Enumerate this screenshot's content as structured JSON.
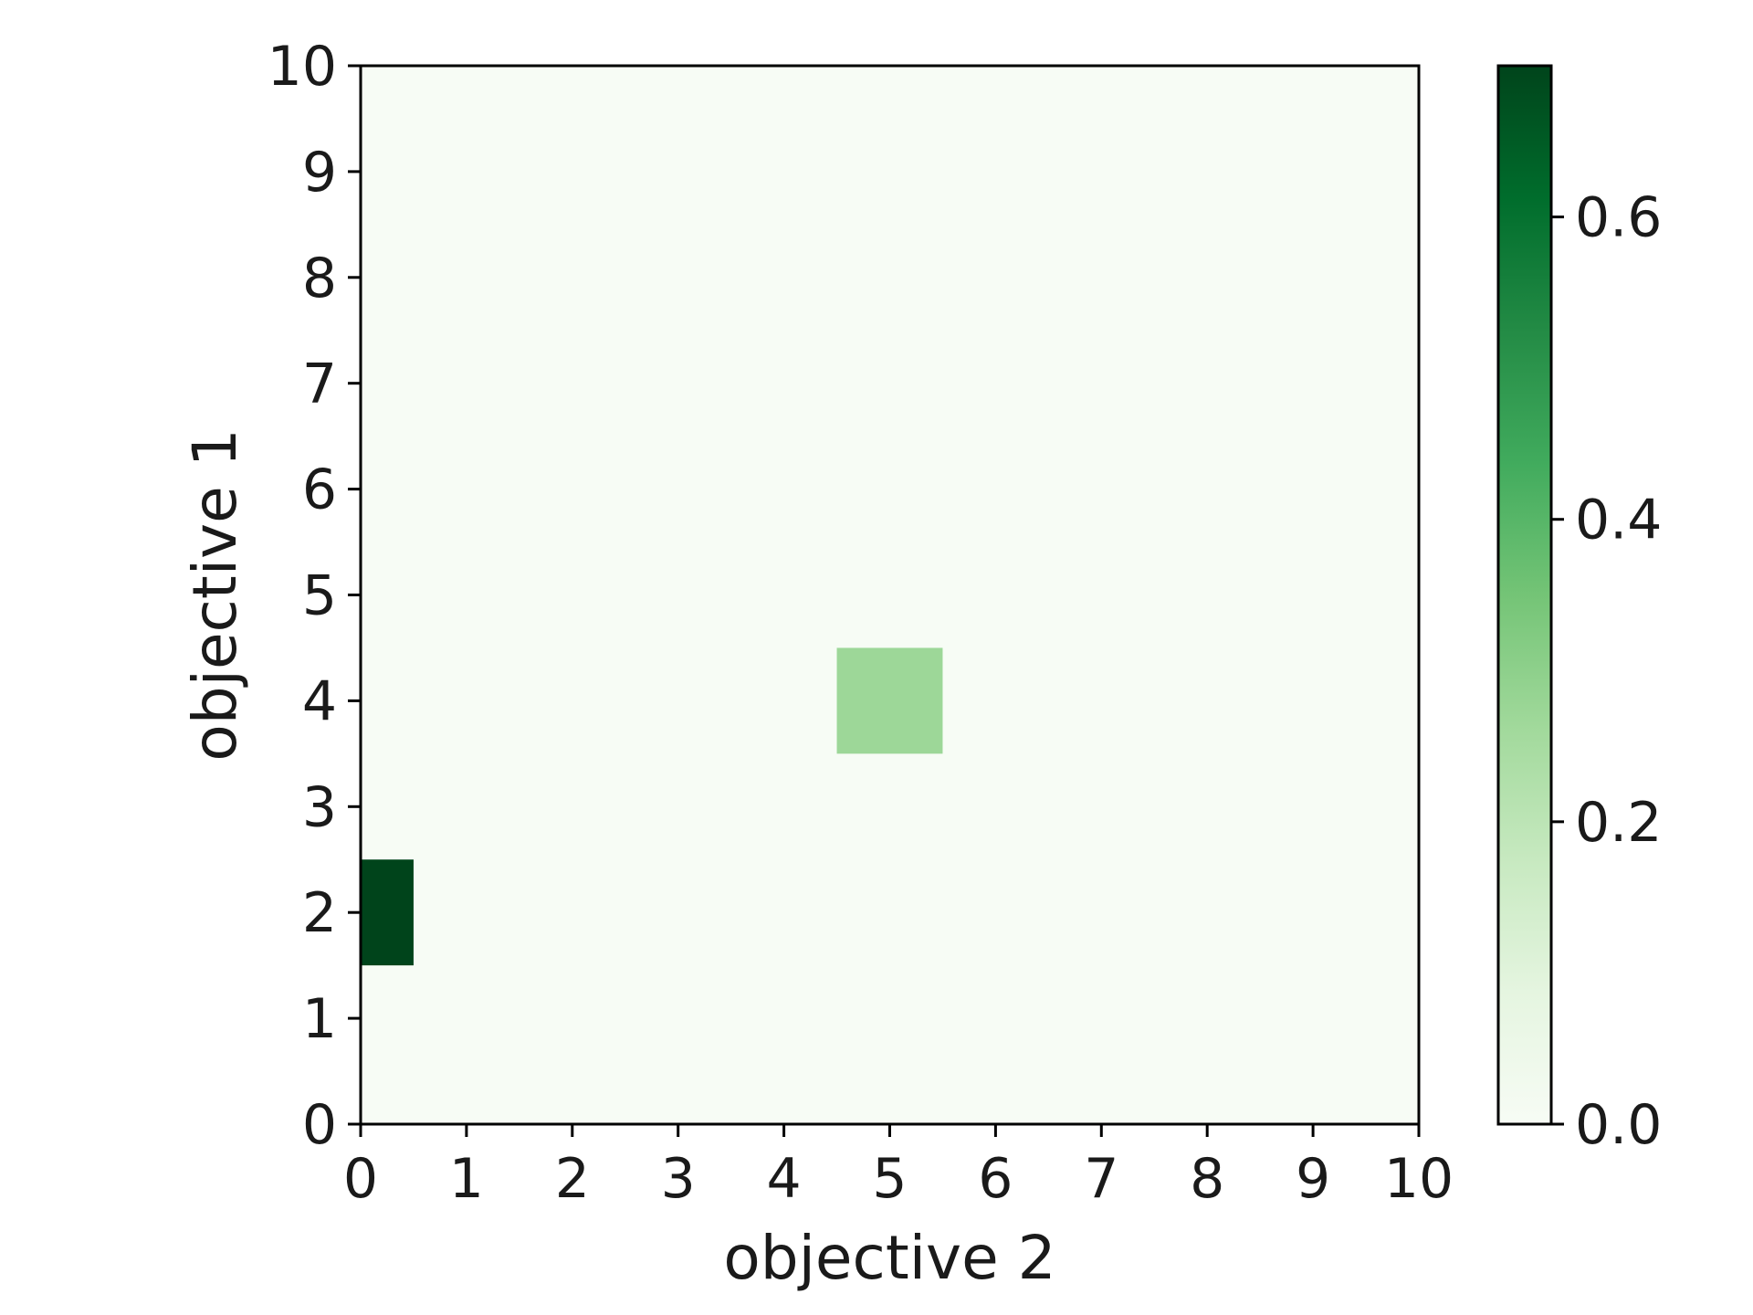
{
  "chart_data": {
    "type": "heatmap",
    "xlabel": "objective 2",
    "ylabel": "objective 1",
    "xlim": [
      0,
      10
    ],
    "ylim": [
      0,
      10
    ],
    "xticks": [
      "0",
      "1",
      "2",
      "3",
      "4",
      "5",
      "6",
      "7",
      "8",
      "9",
      "10"
    ],
    "yticks": [
      "0",
      "1",
      "2",
      "3",
      "4",
      "5",
      "6",
      "7",
      "8",
      "9",
      "10"
    ],
    "background_value": 0.0,
    "cells": [
      {
        "x": 0,
        "y": 2,
        "value": 0.7
      },
      {
        "x": 5,
        "y": 4,
        "value": 0.27
      }
    ],
    "colorbar": {
      "range": [
        0.0,
        0.7
      ],
      "ticks": [
        "0.0",
        "0.2",
        "0.4",
        "0.6"
      ],
      "colormap": "Greens",
      "color_low": "#f7fcf5",
      "color_high": "#00441b"
    },
    "grid": false
  }
}
